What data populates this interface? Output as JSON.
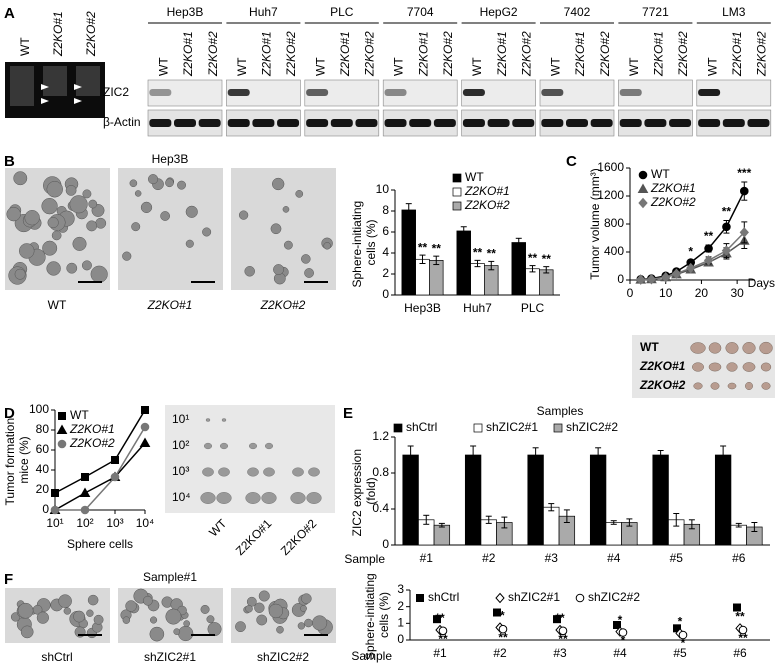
{
  "panel_labels": [
    "A",
    "B",
    "C",
    "D",
    "E",
    "F"
  ],
  "panel_a": {
    "gel_lanes": [
      "WT",
      "Z2KO#1",
      "Z2KO#2"
    ],
    "cell_lines": [
      "Hep3B",
      "Huh7",
      "PLC",
      "7704",
      "HepG2",
      "7402",
      "7721",
      "LM3"
    ],
    "lanes": [
      "WT",
      "Z2KO#1",
      "Z2KO#2"
    ],
    "rows": [
      "ZIC2",
      "β-Actin"
    ]
  },
  "panel_b": {
    "title": "Hep3B",
    "images": [
      "WT",
      "Z2KO#1",
      "Z2KO#2"
    ]
  },
  "panel_c": {
    "images": [
      "WT",
      "Z2KO#1",
      "Z2KO#2"
    ]
  },
  "panel_d": {
    "rows": [
      "10¹",
      "10²",
      "10³",
      "10⁴"
    ],
    "columns": [
      "WT",
      "Z2KO#1",
      "Z2KO#2"
    ]
  },
  "panel_f": {
    "title": "Sample#1",
    "images": [
      "shCtrl",
      "shZIC2#1",
      "shZIC2#2"
    ]
  },
  "chart_data": [
    {
      "type": "bar",
      "y_label": "Sphere-initiating cells (%)",
      "categories": [
        "Hep3B",
        "Huh7",
        "PLC"
      ],
      "ylim": [
        0,
        10
      ],
      "yticks": [
        0,
        2,
        4,
        6,
        8,
        10
      ],
      "series": [
        {
          "name": "WT",
          "color": "#000000",
          "values": [
            8.1,
            6.1,
            5.0
          ],
          "errors": [
            0.6,
            0.4,
            0.4
          ]
        },
        {
          "name": "Z2KO#1",
          "color": "#ffffff",
          "values": [
            3.4,
            3.0,
            2.5
          ],
          "errors": [
            0.4,
            0.3,
            0.3
          ],
          "significance": [
            "**",
            "**",
            "**"
          ]
        },
        {
          "name": "Z2KO#2",
          "color": "#aaaaaa",
          "values": [
            3.3,
            2.8,
            2.4
          ],
          "errors": [
            0.4,
            0.4,
            0.3
          ],
          "significance": [
            "**",
            "**",
            "**"
          ]
        }
      ]
    },
    {
      "type": "line",
      "y_label": "Tumor volume (mm³)",
      "x_label": "Days",
      "x": [
        3,
        6,
        10,
        13,
        17,
        22,
        27,
        32
      ],
      "xlim": [
        0,
        35
      ],
      "xticks": [
        0,
        10,
        20,
        30
      ],
      "ylim": [
        0,
        1600
      ],
      "yticks": [
        0,
        400,
        800,
        1200,
        1600
      ],
      "series": [
        {
          "name": "WT",
          "color": "#000000",
          "marker": "circle",
          "values": [
            10,
            20,
            60,
            120,
            250,
            450,
            760,
            1270
          ],
          "errors": [
            3,
            5,
            10,
            15,
            30,
            50,
            90,
            130
          ],
          "significance": [
            null,
            null,
            null,
            null,
            "*",
            "**",
            "**",
            "***"
          ]
        },
        {
          "name": "Z2KO#1",
          "color": "#555555",
          "marker": "triangle",
          "values": [
            5,
            10,
            40,
            80,
            150,
            250,
            380,
            560
          ],
          "errors": [
            3,
            5,
            10,
            15,
            30,
            50,
            80,
            110
          ]
        },
        {
          "name": "Z2KO#2",
          "color": "#777777",
          "marker": "diamond",
          "values": [
            5,
            10,
            40,
            90,
            170,
            280,
            420,
            680
          ],
          "errors": [
            3,
            5,
            10,
            15,
            30,
            50,
            100,
            150
          ]
        }
      ]
    },
    {
      "type": "line",
      "y_label": "Tumor formation mice (%)",
      "x_label": "Sphere cells",
      "xscale": "log",
      "x": [
        10,
        100,
        1000,
        10000
      ],
      "xlim": [
        10,
        10000
      ],
      "xticks": [
        {
          "value": 10,
          "label": "10¹"
        },
        {
          "value": 100,
          "label": "10²"
        },
        {
          "value": 1000,
          "label": "10³"
        },
        {
          "value": 10000,
          "label": "10⁴"
        }
      ],
      "ylim": [
        0,
        100
      ],
      "yticks": [
        0,
        20,
        40,
        60,
        80,
        100
      ],
      "series": [
        {
          "name": "WT",
          "color": "#000000",
          "marker": "square",
          "values": [
            17,
            33,
            50,
            100
          ]
        },
        {
          "name": "Z2KO#1",
          "color": "#000000",
          "marker": "triangle",
          "values": [
            0,
            17,
            33,
            67
          ]
        },
        {
          "name": "Z2KO#2",
          "color": "#777777",
          "marker": "circle",
          "values": [
            0,
            0,
            33,
            83
          ]
        }
      ]
    },
    {
      "type": "bar",
      "title": "Samples",
      "y_label": "ZIC2 expression (fold)",
      "x_label": "Sample",
      "categories": [
        "#1",
        "#2",
        "#3",
        "#4",
        "#5",
        "#6"
      ],
      "ylim": [
        0,
        1.2
      ],
      "yticks": [
        0,
        0.4,
        0.8,
        1.2
      ],
      "series": [
        {
          "name": "shCtrl",
          "color": "#000000",
          "values": [
            1,
            1,
            1,
            1,
            1,
            1
          ],
          "errors": [
            0.1,
            0.1,
            0.08,
            0.08,
            0.05,
            0.1
          ]
        },
        {
          "name": "shZIC2#1",
          "color": "#ffffff",
          "values": [
            0.28,
            0.28,
            0.42,
            0.25,
            0.28,
            0.22
          ],
          "errors": [
            0.05,
            0.04,
            0.04,
            0.02,
            0.07,
            0.02
          ]
        },
        {
          "name": "shZIC2#2",
          "color": "#aaaaaa",
          "values": [
            0.22,
            0.25,
            0.32,
            0.25,
            0.23,
            0.2
          ],
          "errors": [
            0.02,
            0.06,
            0.07,
            0.04,
            0.05,
            0.05
          ]
        }
      ]
    },
    {
      "type": "scatter",
      "y_label": "Sphere-initiating cells (%)",
      "x_label": "Sample",
      "categories": [
        "#1",
        "#2",
        "#3",
        "#4",
        "#5",
        "#6"
      ],
      "ylim": [
        0,
        3
      ],
      "yticks": [
        0,
        1,
        2,
        3
      ],
      "series": [
        {
          "name": "shCtrl",
          "color": "#000000",
          "marker": "square",
          "values": [
            1.25,
            1.65,
            1.25,
            0.9,
            0.7,
            1.95
          ],
          "errors": [
            0.1,
            0.18,
            0.1,
            0.1,
            0.06,
            0.12
          ]
        },
        {
          "name": "shZIC2#1",
          "color": "#000000",
          "marker": "diamond",
          "open": true,
          "values": [
            0.6,
            0.75,
            0.6,
            0.5,
            0.4,
            0.7
          ],
          "errors": [
            0.08,
            0.1,
            0.08,
            0.05,
            0.05,
            0.1
          ],
          "significance": [
            "**",
            "**",
            "**",
            "*",
            "*",
            "**"
          ]
        },
        {
          "name": "shZIC2#2",
          "color": "#000000",
          "marker": "circle",
          "open": true,
          "values": [
            0.55,
            0.65,
            0.55,
            0.45,
            0.3,
            0.6
          ],
          "errors": [
            0.08,
            0.1,
            0.08,
            0.05,
            0.05,
            0.1
          ],
          "significance": [
            "**",
            "**",
            "**",
            "*",
            "*",
            "**"
          ]
        }
      ]
    }
  ]
}
